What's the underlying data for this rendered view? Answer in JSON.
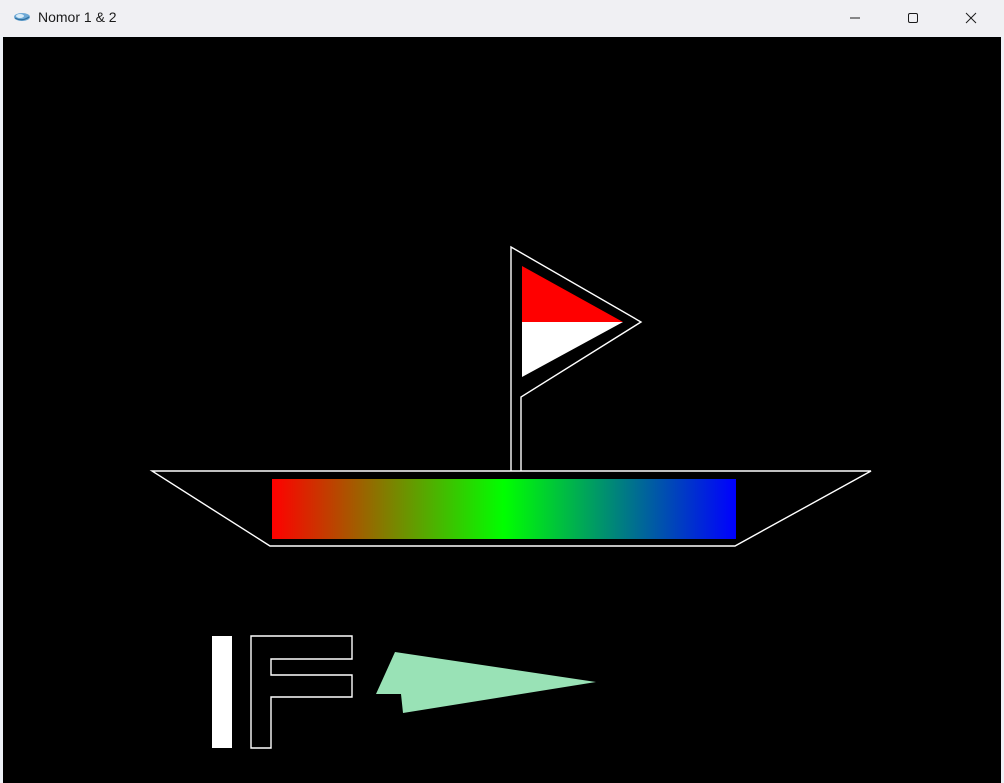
{
  "window": {
    "title": "Nomor 1 & 2",
    "controls": [
      "minimize-icon",
      "maximize-icon",
      "close-icon"
    ]
  },
  "scene": {
    "background_color": "#000000",
    "outline_color": "#ffffff",
    "flag_colors": [
      "#ff0000",
      "#ffffff"
    ],
    "hull_gradient": [
      "#ff0000",
      "#00ff00",
      "#0000ff"
    ],
    "arrow_color": "#99e2b6",
    "letters": [
      "I",
      "F"
    ]
  }
}
